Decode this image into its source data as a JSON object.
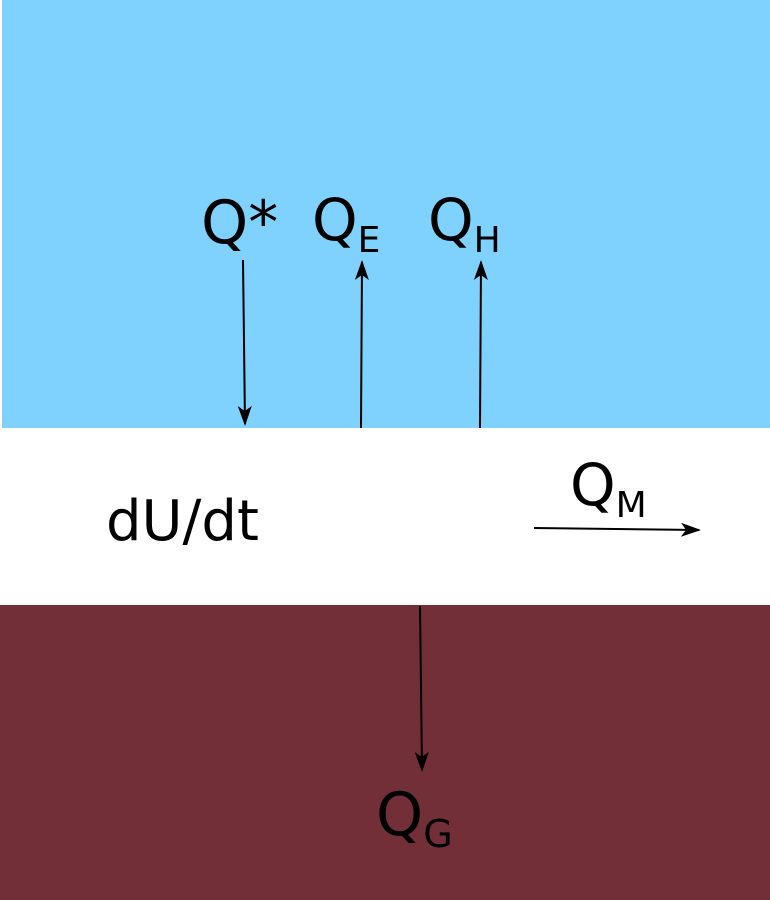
{
  "colors": {
    "atmosphere": "#80d2fe",
    "layer": "#ffffff",
    "ground": "#722f37",
    "arrows": "#000000"
  },
  "labels": {
    "net_radiation": {
      "main": "Q*",
      "sub": ""
    },
    "latent_heat": {
      "main": "Q",
      "sub": "E"
    },
    "sensible_heat": {
      "main": "Q",
      "sub": "H"
    },
    "storage_change": {
      "main": "dU/dt",
      "sub": ""
    },
    "advection": {
      "main": "Q",
      "sub": "M"
    },
    "ground_heat": {
      "main": "Q",
      "sub": "G"
    }
  },
  "flux_directions": {
    "net_radiation": "down",
    "latent_heat": "up",
    "sensible_heat": "up",
    "advection": "right",
    "ground_heat": "down"
  }
}
